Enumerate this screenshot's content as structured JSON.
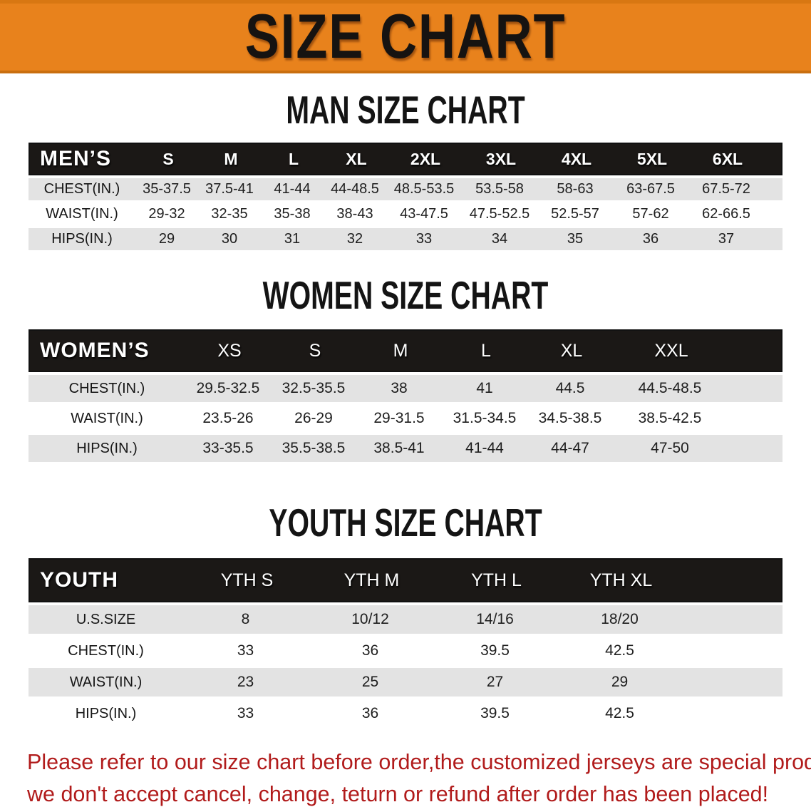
{
  "banner": {
    "title": "SIZE CHART",
    "bg_color": "#E8821C",
    "border_color": "#C96F10",
    "text_color": "#161311"
  },
  "colors": {
    "table_header_bg": "#1B1816",
    "table_header_text": "#FFFFFF",
    "row_stripe": "#E3E3E3",
    "disclaimer_red": "#B11B1B"
  },
  "men": {
    "heading": "MAN SIZE CHART",
    "header": [
      "MEN’S",
      "S",
      "M",
      "L",
      "XL",
      "2XL",
      "3XL",
      "4XL",
      "5XL",
      "6XL"
    ],
    "rows": [
      {
        "label": "CHEST(IN.)",
        "values": [
          "35-37.5",
          "37.5-41",
          "41-44",
          "44-48.5",
          "48.5-53.5",
          "53.5-58",
          "58-63",
          "63-67.5",
          "67.5-72"
        ]
      },
      {
        "label": "WAIST(IN.)",
        "values": [
          "29-32",
          "32-35",
          "35-38",
          "38-43",
          "43-47.5",
          "47.5-52.5",
          "52.5-57",
          "57-62",
          "62-66.5"
        ]
      },
      {
        "label": "HIPS(IN.)",
        "values": [
          "29",
          "30",
          "31",
          "32",
          "33",
          "34",
          "35",
          "36",
          "37"
        ]
      }
    ]
  },
  "women": {
    "heading": "WOMEN SIZE CHART",
    "header": [
      "WOMEN’S",
      "XS",
      "S",
      "M",
      "L",
      "XL",
      "XXL"
    ],
    "rows": [
      {
        "label": "CHEST(IN.)",
        "values": [
          "29.5-32.5",
          "32.5-35.5",
          "38",
          "41",
          "44.5",
          "44.5-48.5"
        ]
      },
      {
        "label": "WAIST(IN.)",
        "values": [
          "23.5-26",
          "26-29",
          "29-31.5",
          "31.5-34.5",
          "34.5-38.5",
          "38.5-42.5"
        ]
      },
      {
        "label": "HIPS(IN.)",
        "values": [
          "33-35.5",
          "35.5-38.5",
          "38.5-41",
          "41-44",
          "44-47",
          "47-50"
        ]
      }
    ]
  },
  "youth": {
    "heading": "YOUTH SIZE CHART",
    "header": [
      "YOUTH",
      "YTH S",
      "YTH M",
      "YTH L",
      "YTH XL"
    ],
    "rows": [
      {
        "label": "U.S.SIZE",
        "values": [
          "8",
          "10/12",
          "14/16",
          "18/20"
        ]
      },
      {
        "label": "CHEST(IN.)",
        "values": [
          "33",
          "36",
          "39.5",
          "42.5"
        ]
      },
      {
        "label": "WAIST(IN.)",
        "values": [
          "23",
          "25",
          "27",
          "29"
        ]
      },
      {
        "label": "HIPS(IN.)",
        "values": [
          "33",
          "36",
          "39.5",
          "42.5"
        ]
      }
    ]
  },
  "disclaimer": {
    "line1": "Please refer to our size chart before order,the customized jerseys are special products,",
    "line2": "we don't accept cancel, change, teturn or refund after order has been placed!"
  }
}
